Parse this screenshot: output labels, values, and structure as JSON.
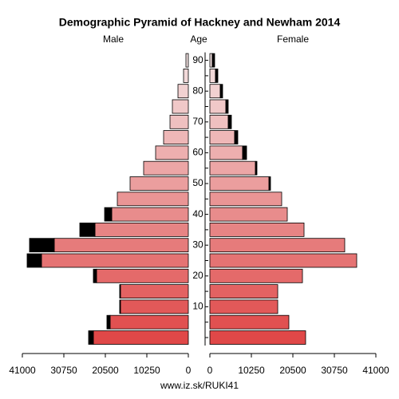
{
  "chart_data": {
    "type": "pyramid",
    "title": "Demographic Pyramid of Hackney and Newham 2014",
    "axis_label": "Age",
    "footer": "www.iz.sk/RUKI41",
    "categories": [
      null,
      null,
      "10",
      null,
      "20",
      null,
      "30",
      null,
      "40",
      null,
      "50",
      null,
      "60",
      null,
      "70",
      null,
      "80",
      null,
      "90"
    ],
    "gradient": [
      "#e04848",
      "#f3e2e2"
    ],
    "excess_color": "#000000",
    "xlim": [
      0,
      41000
    ],
    "xticks": [
      41000,
      30750,
      20500,
      10250,
      0
    ],
    "series": [
      {
        "name": "Male",
        "side": "left",
        "values": [
          23460,
          19320,
          16760,
          16760,
          22670,
          36270,
          33120,
          23060,
          18920,
          17540,
          14390,
          11040,
          8080,
          6110,
          4530,
          3940,
          2560,
          1180,
          590
        ],
        "excess": [
          1180,
          790,
          200,
          200,
          790,
          3550,
          6110,
          3750,
          1770,
          0,
          0,
          0,
          0,
          0,
          0,
          0,
          0,
          0,
          0
        ]
      },
      {
        "name": "Female",
        "side": "right",
        "values": [
          23650,
          19510,
          16760,
          16760,
          22870,
          36270,
          33310,
          23260,
          19120,
          17740,
          14590,
          11240,
          8080,
          6110,
          4530,
          3940,
          2560,
          1380,
          590
        ],
        "excess": [
          0,
          0,
          0,
          0,
          0,
          0,
          0,
          0,
          0,
          0,
          390,
          390,
          990,
          790,
          790,
          590,
          590,
          590,
          590
        ]
      }
    ]
  }
}
